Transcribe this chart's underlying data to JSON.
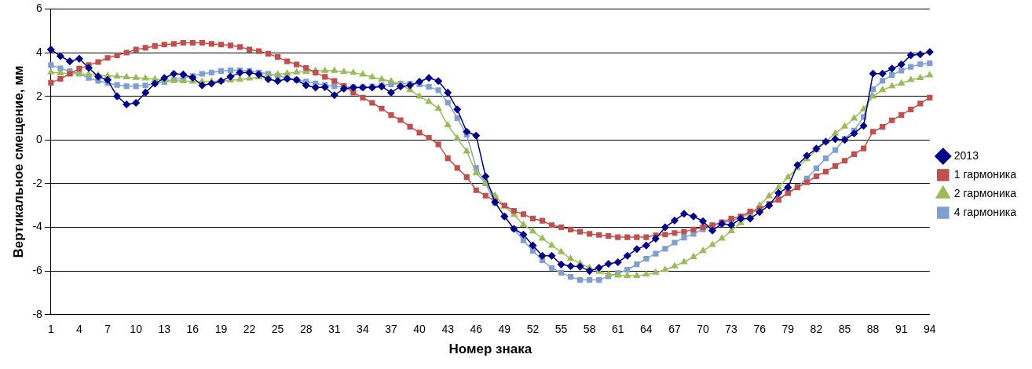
{
  "chart_data": {
    "type": "line",
    "xlabel": "Номер знака",
    "ylabel": "Вертикальное смещение, мм",
    "categories": [
      "1",
      null,
      null,
      "4",
      null,
      null,
      "7",
      null,
      null,
      "10",
      null,
      null,
      "13",
      null,
      null,
      "16",
      null,
      null,
      "19",
      null,
      null,
      "22",
      null,
      null,
      "25",
      null,
      null,
      "28",
      null,
      null,
      "31",
      null,
      null,
      "34",
      null,
      null,
      "37",
      null,
      null,
      "40",
      null,
      null,
      "43",
      null,
      null,
      "46",
      null,
      null,
      "49",
      null,
      null,
      "52",
      null,
      null,
      "55",
      null,
      null,
      "58",
      null,
      null,
      "61",
      null,
      null,
      "64",
      null,
      null,
      "67",
      null,
      null,
      "70",
      null,
      null,
      "73",
      null,
      null,
      "76",
      null,
      null,
      "79",
      null,
      null,
      "82",
      null,
      null,
      "85",
      null,
      null,
      "88",
      null,
      null,
      "91",
      null,
      null,
      "94"
    ],
    "ylim": [
      -8,
      6
    ],
    "yticks": [
      -8,
      -6,
      -4,
      -2,
      0,
      2,
      4,
      6
    ],
    "grid": "y",
    "legend": "right",
    "series": [
      {
        "name": "2013",
        "color": "#00008b",
        "marker": "diamond",
        "values": [
          4.14,
          3.84,
          3.6,
          3.72,
          3.3,
          2.9,
          2.75,
          2.0,
          1.63,
          1.7,
          2.17,
          2.58,
          2.84,
          3.03,
          3.0,
          2.85,
          2.5,
          2.58,
          2.7,
          2.9,
          3.08,
          3.08,
          3.0,
          2.78,
          2.7,
          2.8,
          2.75,
          2.5,
          2.4,
          2.42,
          2.05,
          2.35,
          2.4,
          2.4,
          2.4,
          2.45,
          2.17,
          2.45,
          2.5,
          2.67,
          2.84,
          2.7,
          2.17,
          1.4,
          0.38,
          0.2,
          -1.67,
          -2.85,
          -3.5,
          -4.07,
          -4.33,
          -4.83,
          -5.3,
          -5.3,
          -5.7,
          -5.78,
          -5.8,
          -6.0,
          -5.85,
          -5.67,
          -5.6,
          -5.3,
          -5.0,
          -4.83,
          -4.52,
          -4.0,
          -3.69,
          -3.38,
          -3.5,
          -3.72,
          -4.15,
          -3.84,
          -3.9,
          -3.6,
          -3.6,
          -3.3,
          -3.0,
          -2.43,
          -2.17,
          -1.15,
          -0.72,
          -0.4,
          -0.08,
          0.04,
          0.0,
          0.3,
          0.65,
          3.04,
          3.04,
          3.27,
          3.46,
          3.88,
          3.92,
          4.03
        ]
      },
      {
        "name": "1 гармоника",
        "color": "#c0504d",
        "marker": "square",
        "values": [
          2.62,
          2.8,
          3.03,
          3.27,
          3.43,
          3.57,
          3.76,
          3.88,
          4.0,
          4.14,
          4.22,
          4.3,
          4.37,
          4.4,
          4.45,
          4.45,
          4.45,
          4.4,
          4.37,
          4.33,
          4.26,
          4.14,
          4.07,
          3.95,
          3.8,
          3.6,
          3.46,
          3.3,
          3.08,
          2.89,
          2.7,
          2.47,
          2.17,
          1.94,
          1.7,
          1.44,
          1.14,
          0.91,
          0.61,
          0.34,
          0.1,
          -0.2,
          -0.84,
          -1.28,
          -1.7,
          -2.3,
          -2.55,
          -2.8,
          -3.0,
          -3.25,
          -3.4,
          -3.6,
          -3.7,
          -3.9,
          -4.0,
          -4.1,
          -4.2,
          -4.3,
          -4.35,
          -4.4,
          -4.45,
          -4.45,
          -4.45,
          -4.45,
          -4.37,
          -4.33,
          -4.26,
          -4.2,
          -4.1,
          -4.0,
          -3.9,
          -3.77,
          -3.6,
          -3.5,
          -3.27,
          -3.16,
          -2.93,
          -2.74,
          -2.43,
          -2.17,
          -1.94,
          -1.66,
          -1.45,
          -1.19,
          -0.95,
          -0.65,
          -0.39,
          0.38,
          0.6,
          0.9,
          1.15,
          1.4,
          1.67,
          1.94
        ]
      },
      {
        "name": "2 гармоника",
        "color": "#9bbb59",
        "marker": "triangle",
        "values": [
          3.1,
          3.07,
          3.04,
          3.02,
          3.0,
          2.97,
          2.94,
          2.91,
          2.88,
          2.85,
          2.82,
          2.78,
          2.75,
          2.72,
          2.7,
          2.68,
          2.67,
          2.68,
          2.7,
          2.73,
          2.77,
          2.82,
          2.88,
          2.94,
          3.0,
          3.05,
          3.1,
          3.13,
          3.17,
          3.17,
          3.17,
          3.12,
          3.08,
          3.0,
          2.88,
          2.78,
          2.69,
          2.55,
          2.29,
          2.0,
          1.75,
          1.44,
          0.68,
          0.08,
          -0.52,
          -1.52,
          -1.98,
          -2.55,
          -3.04,
          -3.42,
          -3.88,
          -4.18,
          -4.51,
          -4.83,
          -5.13,
          -5.44,
          -5.65,
          -5.86,
          -6.03,
          -6.16,
          -6.2,
          -6.22,
          -6.22,
          -6.16,
          -6.07,
          -5.94,
          -5.78,
          -5.59,
          -5.36,
          -5.08,
          -4.8,
          -4.51,
          -4.17,
          -3.8,
          -3.42,
          -2.99,
          -2.57,
          -2.17,
          -1.71,
          -1.28,
          -0.87,
          -0.46,
          -0.08,
          0.3,
          0.62,
          0.99,
          1.41,
          2.0,
          2.29,
          2.46,
          2.59,
          2.75,
          2.84,
          2.97
        ]
      },
      {
        "name": "4 гармоника",
        "color": "#7f9fd0",
        "marker": "square",
        "values": [
          3.43,
          3.28,
          3.15,
          3.03,
          2.84,
          2.71,
          2.61,
          2.52,
          2.46,
          2.46,
          2.5,
          2.59,
          2.65,
          2.75,
          2.84,
          2.93,
          3.03,
          3.09,
          3.16,
          3.19,
          3.19,
          3.16,
          3.09,
          3.03,
          2.94,
          2.84,
          2.75,
          2.68,
          2.59,
          2.52,
          2.46,
          2.42,
          2.42,
          2.42,
          2.45,
          2.5,
          2.55,
          2.58,
          2.58,
          2.55,
          2.43,
          2.28,
          1.71,
          1.0,
          0.24,
          -1.28,
          -1.98,
          -2.89,
          -3.5,
          -4.07,
          -4.6,
          -5.08,
          -5.51,
          -5.86,
          -6.08,
          -6.27,
          -6.41,
          -6.41,
          -6.41,
          -6.24,
          -6.1,
          -5.94,
          -5.69,
          -5.44,
          -5.21,
          -4.98,
          -4.7,
          -4.47,
          -4.3,
          -4.09,
          -3.94,
          -3.8,
          -3.69,
          -3.56,
          -3.35,
          -3.16,
          -2.95,
          -2.7,
          -2.42,
          -2.14,
          -1.76,
          -1.3,
          -0.84,
          -0.46,
          0.05,
          0.43,
          1.06,
          2.33,
          2.71,
          2.97,
          3.18,
          3.35,
          3.47,
          3.51
        ]
      }
    ]
  }
}
